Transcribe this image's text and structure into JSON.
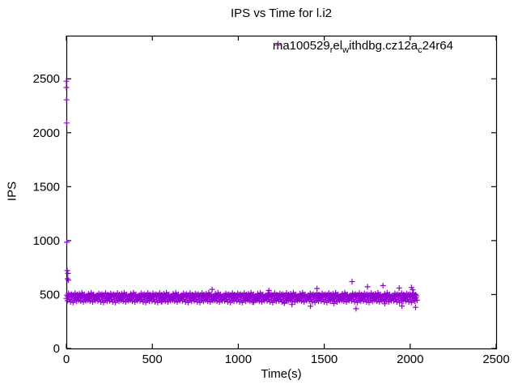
{
  "chart_data": {
    "type": "scatter",
    "title": "IPS vs Time for l.i2",
    "xlabel": "Time(s)",
    "ylabel": "IPS",
    "xlim": [
      0,
      2500
    ],
    "ylim": [
      0,
      2900
    ],
    "xticks": [
      0,
      500,
      1000,
      1500,
      2000,
      2500
    ],
    "yticks": [
      0,
      500,
      1000,
      1500,
      2000,
      2500
    ],
    "grid": false,
    "tick_mirror": true,
    "legend": {
      "position": "top-right-inside",
      "label": "ma100529_rel_withdbg.cz12a_c24r64",
      "label_segments": [
        {
          "text": "ma100529"
        },
        {
          "text": "r",
          "sub": true
        },
        {
          "text": "el"
        },
        {
          "text": "w",
          "sub": true
        },
        {
          "text": "ithdbg.cz12a"
        },
        {
          "text": "c",
          "sub": true
        },
        {
          "text": "24r64"
        }
      ],
      "marker": "plus"
    },
    "marker": {
      "shape": "plus",
      "color": "#9400D3",
      "size": 7
    },
    "series": [
      {
        "name": "ma100529_rel_withdbg.cz12a_c24r64",
        "startup_transient": [
          [
            0,
            2478
          ],
          [
            0,
            2420
          ],
          [
            1,
            2305
          ],
          [
            2,
            2090
          ],
          [
            3,
            985
          ],
          [
            5,
            722
          ],
          [
            6,
            646
          ],
          [
            9,
            696
          ],
          [
            12,
            633
          ]
        ],
        "outliers_high": [
          [
            848,
            548
          ],
          [
            1178,
            538
          ],
          [
            1458,
            556
          ],
          [
            1662,
            620
          ],
          [
            1752,
            572
          ],
          [
            1842,
            583
          ],
          [
            1936,
            560
          ],
          [
            2007,
            565
          ],
          [
            2014,
            545
          ]
        ],
        "outliers_low": [
          [
            555,
            432
          ],
          [
            1090,
            428
          ],
          [
            1268,
            420
          ],
          [
            1312,
            408
          ],
          [
            1420,
            392
          ],
          [
            1556,
            418
          ],
          [
            1685,
            369
          ],
          [
            1852,
            415
          ],
          [
            1952,
            394
          ],
          [
            2031,
            382
          ]
        ],
        "band": {
          "t0": 0,
          "dt": 3,
          "ips": [
            464,
            494,
            442,
            484,
            510,
            456,
            474,
            499,
            432,
            479,
            503,
            450,
            486,
            427,
            496,
            476,
            446,
            514,
            462,
            490,
            437,
            500,
            470,
            488,
            448,
            507,
            458,
            478,
            439,
            492,
            516,
            466,
            497,
            431,
            482,
            502,
            453,
            480,
            444,
            487,
            460,
            488,
            448,
            507,
            458,
            478,
            439,
            492,
            516,
            466,
            497,
            431,
            482,
            502,
            453,
            480,
            444,
            487,
            460,
            464,
            494,
            442,
            484,
            510,
            456,
            474,
            499,
            432,
            479,
            503,
            450,
            486,
            427,
            496,
            476,
            446,
            514,
            462,
            490,
            437,
            500,
            470,
            464,
            494,
            442,
            484,
            510,
            456,
            474,
            499,
            432,
            479,
            503,
            450,
            486,
            427,
            496,
            476,
            446,
            514,
            462,
            490,
            437,
            500,
            470,
            488,
            448,
            507,
            458,
            478,
            439,
            492,
            516,
            466,
            497,
            431,
            482,
            502,
            453,
            480,
            444,
            487,
            460,
            488,
            448,
            507,
            458,
            478,
            439,
            492,
            516,
            466,
            497,
            431,
            482,
            502,
            453,
            480,
            444,
            487,
            460,
            464,
            494,
            442,
            484,
            510,
            456,
            474,
            499,
            432,
            479,
            503,
            450,
            486,
            427,
            496,
            476,
            446,
            514,
            462,
            490,
            437,
            500,
            470,
            464,
            494,
            442,
            484,
            510,
            456,
            474,
            499,
            432,
            479,
            503,
            450,
            486,
            427,
            496,
            476,
            446,
            514,
            462,
            490,
            437,
            500,
            470,
            488,
            448,
            507,
            458,
            478,
            439,
            492,
            516,
            466,
            497,
            431,
            482,
            502,
            453,
            480,
            444,
            487,
            460,
            488,
            448,
            507,
            458,
            478,
            439,
            492,
            516,
            466,
            497,
            431,
            482,
            502,
            453,
            480,
            444,
            487,
            460,
            464,
            494,
            442,
            484,
            510,
            456,
            474,
            499,
            432,
            479,
            503,
            450,
            486,
            427,
            496,
            476,
            446,
            514,
            462,
            490,
            437,
            500,
            470,
            464,
            494,
            442,
            484,
            510,
            456,
            474,
            499,
            432,
            479,
            503,
            450,
            486,
            427,
            496,
            476,
            446,
            514,
            462,
            490,
            437,
            500,
            470,
            488,
            448,
            507,
            458,
            478,
            439,
            492,
            516,
            466,
            497,
            431,
            482,
            502,
            453,
            480,
            444,
            487,
            460,
            488,
            448,
            507,
            458,
            478,
            439,
            492,
            516,
            466,
            497,
            431,
            482,
            502,
            453,
            480,
            444,
            487,
            460,
            464,
            494,
            442,
            484,
            510,
            456,
            474,
            499,
            432,
            479,
            503,
            450,
            486,
            427,
            496,
            476,
            446,
            514,
            462,
            490,
            437,
            500,
            470,
            464,
            494,
            442,
            484,
            510,
            456,
            474,
            499,
            432,
            479,
            503,
            450,
            486,
            427,
            496,
            476,
            446,
            514,
            462,
            490,
            437,
            500,
            470,
            488,
            448,
            507,
            458,
            478,
            439,
            492,
            516,
            466,
            497,
            431,
            482,
            502,
            453,
            480,
            444,
            487,
            460,
            488,
            448,
            507,
            458,
            478,
            439,
            492,
            516,
            466,
            497,
            431,
            482,
            502,
            453,
            480,
            444,
            487,
            460,
            464,
            494,
            442,
            484,
            510,
            456,
            474,
            499,
            432,
            479,
            503,
            450,
            486,
            427,
            496,
            476,
            446,
            514,
            462,
            490,
            437,
            500,
            470,
            464,
            494,
            442,
            484,
            510,
            456,
            474,
            499,
            432,
            479,
            503,
            450,
            486,
            427,
            496,
            476,
            446,
            514,
            462,
            490,
            437,
            500,
            470,
            488,
            448,
            507,
            458,
            478,
            439,
            492,
            516,
            466,
            497,
            431,
            482,
            502,
            453,
            480,
            444,
            487,
            460,
            488,
            448,
            507,
            458,
            478,
            439,
            492,
            516,
            466,
            497,
            431,
            482,
            502,
            453,
            480,
            444,
            487,
            460,
            464,
            494,
            442,
            484,
            510,
            456,
            474,
            499,
            432,
            479,
            503,
            450,
            486,
            427,
            496,
            476,
            446,
            514,
            462,
            490,
            437,
            500,
            470,
            464,
            494,
            442,
            484,
            510,
            456,
            474,
            499,
            432,
            479,
            503,
            450,
            486,
            427,
            496,
            476,
            446,
            514,
            462,
            490,
            437,
            500,
            470,
            488,
            448,
            507,
            458,
            478,
            439,
            492,
            516,
            466,
            497,
            431,
            482,
            502,
            453,
            480,
            444,
            487,
            460,
            488,
            448,
            507,
            458,
            478,
            439,
            492,
            516,
            466,
            497,
            431,
            482,
            502,
            453,
            480,
            444,
            487,
            460,
            464,
            494,
            442,
            484,
            510,
            456,
            474,
            499,
            432,
            479,
            503,
            450,
            486,
            427,
            496,
            476,
            446,
            514,
            462,
            490,
            437,
            500,
            470,
            464,
            494,
            442,
            484,
            510,
            456,
            474,
            499,
            432,
            479,
            503,
            450,
            486,
            427,
            496,
            476,
            446,
            514,
            462,
            490,
            437,
            500,
            470,
            488,
            448,
            507,
            458,
            478,
            439,
            492,
            516,
            466,
            497,
            431,
            482,
            502,
            453,
            480,
            444,
            487,
            460,
            488,
            448,
            507,
            458,
            478,
            439,
            492,
            516,
            466,
            497,
            431,
            482,
            502,
            453,
            480,
            444,
            487,
            460,
            464,
            494,
            442,
            484,
            510,
            456,
            474,
            499,
            432,
            479,
            503,
            450,
            486,
            427,
            496,
            476,
            446,
            514,
            462,
            490,
            437,
            500,
            470,
            464,
            494,
            442,
            484,
            510,
            456,
            474,
            499,
            432,
            479,
            503,
            450,
            486,
            427,
            496,
            476,
            446,
            514,
            462,
            490,
            437,
            500,
            470,
            488,
            448
          ]
        }
      }
    ]
  },
  "colors": {
    "marker": "#9400D3",
    "axis": "#000000",
    "text": "#000000",
    "background": "#FFFFFF"
  }
}
